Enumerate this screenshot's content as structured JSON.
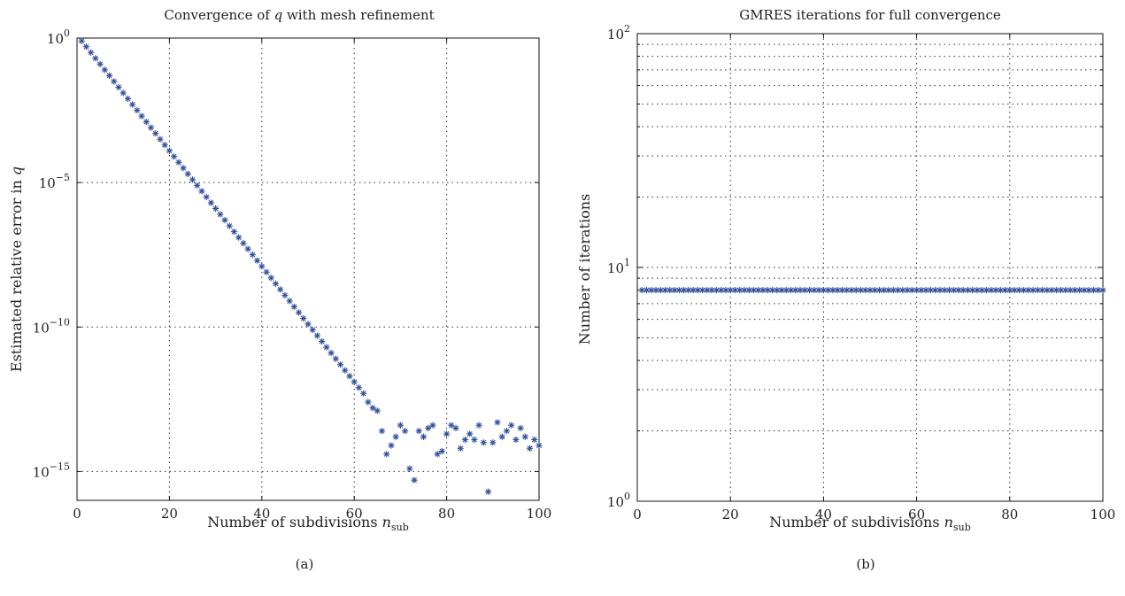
{
  "chart_data": [
    {
      "type": "scatter",
      "panel_label": "(a)",
      "title_parts": [
        "Convergence of ",
        "q",
        " with mesh refinement"
      ],
      "xlabel_parts": [
        "Number of subdivisions ",
        "n",
        "sub"
      ],
      "ylabel_parts": [
        "Estimated relative error in ",
        "q"
      ],
      "xlim": [
        0,
        100
      ],
      "ylim_log10": [
        -16,
        0
      ],
      "x_scale": "linear",
      "y_scale": "log",
      "grid": true,
      "marker": "asterisk",
      "color": "#2f4f9a",
      "x_ticks": [
        "0",
        "20",
        "40",
        "60",
        "80",
        "100"
      ],
      "y_ticks": [
        {
          "base": "10",
          "exp": "0",
          "log10": 0
        },
        {
          "base": "10",
          "exp": "−5",
          "log10": -5
        },
        {
          "base": "10",
          "exp": "−10",
          "log10": -10
        },
        {
          "base": "10",
          "exp": "−15",
          "log10": -15
        }
      ],
      "series": [
        {
          "x": [
            1,
            2,
            3,
            4,
            5,
            6,
            7,
            8,
            9,
            10,
            11,
            12,
            13,
            14,
            15,
            16,
            17,
            18,
            19,
            20,
            21,
            22,
            23,
            24,
            25,
            26,
            27,
            28,
            29,
            30,
            31,
            32,
            33,
            34,
            35,
            36,
            37,
            38,
            39,
            40,
            41,
            42,
            43,
            44,
            45,
            46,
            47,
            48,
            49,
            50,
            51,
            52,
            53,
            54,
            55,
            56,
            57,
            58,
            59,
            60,
            61,
            62,
            63,
            64,
            65,
            66,
            67,
            68,
            69,
            70,
            71,
            72,
            73,
            74,
            75,
            76,
            77,
            78,
            79,
            80,
            81,
            82,
            83,
            84,
            85,
            86,
            87,
            88,
            89,
            90,
            91,
            92,
            93,
            94,
            95,
            96,
            97,
            98,
            99,
            100
          ],
          "log10_y": [
            -0.1,
            -0.3,
            -0.5,
            -0.7,
            -0.9,
            -1.1,
            -1.3,
            -1.5,
            -1.7,
            -1.9,
            -2.1,
            -2.3,
            -2.5,
            -2.7,
            -2.9,
            -3.1,
            -3.3,
            -3.5,
            -3.7,
            -3.9,
            -4.1,
            -4.3,
            -4.5,
            -4.7,
            -4.9,
            -5.1,
            -5.3,
            -5.5,
            -5.7,
            -5.9,
            -6.1,
            -6.3,
            -6.5,
            -6.7,
            -6.9,
            -7.1,
            -7.3,
            -7.5,
            -7.7,
            -7.9,
            -8.1,
            -8.3,
            -8.5,
            -8.7,
            -8.9,
            -9.1,
            -9.3,
            -9.5,
            -9.7,
            -9.9,
            -10.1,
            -10.3,
            -10.5,
            -10.7,
            -10.9,
            -11.1,
            -11.3,
            -11.5,
            -11.7,
            -11.9,
            -12.1,
            -12.3,
            -12.6,
            -12.8,
            -12.9,
            -13.6,
            -14.4,
            -14.1,
            -13.8,
            -13.4,
            -13.6,
            -14.9,
            -15.3,
            -13.6,
            -13.8,
            -13.5,
            -13.4,
            -14.4,
            -14.3,
            -13.7,
            -13.4,
            -13.5,
            -14.2,
            -13.9,
            -13.7,
            -13.9,
            -13.4,
            -14.0,
            -15.7,
            -14.0,
            -13.3,
            -13.8,
            -13.6,
            -13.4,
            -13.9,
            -13.5,
            -13.8,
            -14.2,
            -13.9,
            -14.1
          ]
        }
      ]
    },
    {
      "type": "scatter",
      "panel_label": "(b)",
      "title_parts": [
        "GMRES iterations for full convergence"
      ],
      "xlabel_parts": [
        "Number of subdivisions ",
        "n",
        "sub"
      ],
      "ylabel_parts": [
        "Number of iterations"
      ],
      "xlim": [
        0,
        100
      ],
      "ylim": [
        1,
        100
      ],
      "x_scale": "linear",
      "y_scale": "log",
      "grid": true,
      "marker": "asterisk",
      "color": "#2f4f9a",
      "x_ticks": [
        "0",
        "20",
        "40",
        "60",
        "80",
        "100"
      ],
      "y_ticks": [
        {
          "base": "10",
          "exp": "0",
          "log10": 0
        },
        {
          "base": "10",
          "exp": "1",
          "log10": 1
        },
        {
          "base": "10",
          "exp": "2",
          "log10": 2
        }
      ],
      "series": [
        {
          "x_start": 1,
          "x_end": 100,
          "y_constant": 8
        }
      ]
    }
  ]
}
